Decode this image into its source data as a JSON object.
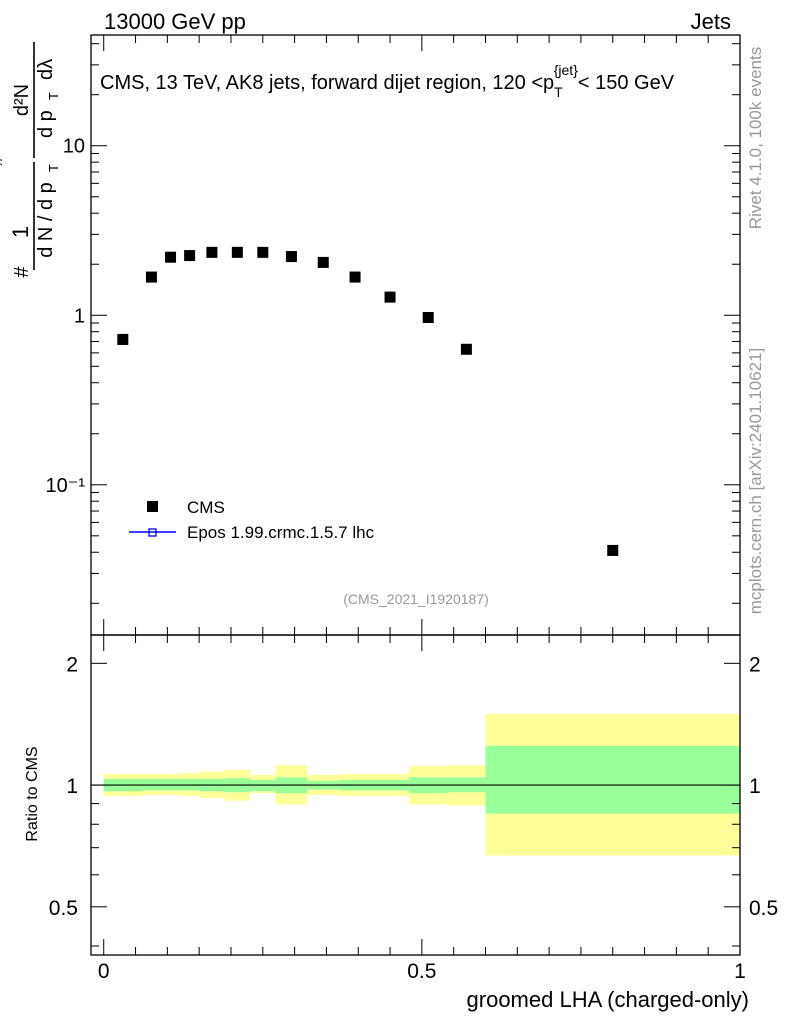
{
  "header": {
    "left": "13000 GeV pp",
    "right": "Jets"
  },
  "side_labels": {
    "rivet": "Rivet 4.1.0,  100k events",
    "mcplots": "mcplots.cern.ch [arXiv:2401.10621]"
  },
  "colors": {
    "data": "#000000",
    "mc": "#0000ff",
    "band_inner": "#99ff99",
    "band_outer": "#ffff99",
    "analysis_tag": "#999999"
  },
  "chart_data": [
    {
      "type": "scatter",
      "title": "CMS, 13 TeV, AK8 jets, forward dijet region, 120 <p_T^{jet}< 150 GeV",
      "title_parts": {
        "main": "CMS, 13 TeV, AK8 jets, forward dijet region, 120 <p",
        "sub": "T",
        "sup": "{jet}",
        "tail": "< 150 GeV"
      },
      "ylabel_parts": {
        "num": "1",
        "den": "d N / d p",
        "den_sub": "T",
        "hash": "#",
        "deriv_num": "d²N",
        "deriv_den": "d p",
        "deriv_sub": "T",
        "lambda": "dλ"
      },
      "yscale": "log",
      "ylim": [
        0.013,
        45
      ],
      "xlim": [
        -0.02,
        1.0
      ],
      "ytick_labels": [
        "10",
        "1",
        "10⁻¹"
      ],
      "yticks": [
        10,
        1,
        0.1
      ],
      "legend": {
        "position": "lower-left",
        "entries": [
          "CMS",
          "Epos 1.99.crmc.1.5.7 lhc"
        ]
      },
      "annotation": "(CMS_2021_I1920187)",
      "series": [
        {
          "name": "CMS",
          "x": [
            0.03,
            0.075,
            0.105,
            0.135,
            0.17,
            0.21,
            0.25,
            0.295,
            0.345,
            0.395,
            0.45,
            0.51,
            0.57,
            0.8
          ],
          "y": [
            0.72,
            1.68,
            2.2,
            2.25,
            2.35,
            2.35,
            2.35,
            2.22,
            2.05,
            1.68,
            1.28,
            0.97,
            0.63,
            0.041
          ]
        },
        {
          "name": "Epos 1.99.crmc.1.5.7 lhc",
          "x": [],
          "y": []
        }
      ]
    },
    {
      "type": "area",
      "ylabel": "Ratio to CMS",
      "xlabel": "groomed LHA (charged-only)",
      "xlim": [
        -0.02,
        1.0
      ],
      "ylim": [
        0.38,
        2.35
      ],
      "xtick_labels": [
        "0",
        "0.5",
        "1"
      ],
      "xticks": [
        0,
        0.5,
        1
      ],
      "ytick_labels": [
        "2",
        "1",
        "0.5"
      ],
      "yticks": [
        2,
        1,
        0.5
      ],
      "bins": [
        0.0,
        0.06,
        0.09,
        0.12,
        0.15,
        0.19,
        0.23,
        0.27,
        0.32,
        0.37,
        0.42,
        0.48,
        0.54,
        0.6,
        1.0
      ],
      "inner_band": {
        "lo": [
          0.965,
          0.97,
          0.97,
          0.97,
          0.965,
          0.96,
          0.965,
          0.955,
          0.975,
          0.97,
          0.97,
          0.955,
          0.96,
          0.85
        ],
        "hi": [
          1.035,
          1.035,
          1.035,
          1.035,
          1.035,
          1.04,
          1.03,
          1.045,
          1.025,
          1.03,
          1.03,
          1.045,
          1.045,
          1.25
        ]
      },
      "outer_band": {
        "lo": [
          0.94,
          0.945,
          0.945,
          0.94,
          0.93,
          0.915,
          0.955,
          0.895,
          0.945,
          0.94,
          0.94,
          0.895,
          0.89,
          0.67
        ],
        "hi": [
          1.065,
          1.065,
          1.065,
          1.07,
          1.08,
          1.09,
          1.06,
          1.12,
          1.06,
          1.065,
          1.065,
          1.115,
          1.12,
          1.5
        ]
      },
      "reference_line": 1
    }
  ]
}
